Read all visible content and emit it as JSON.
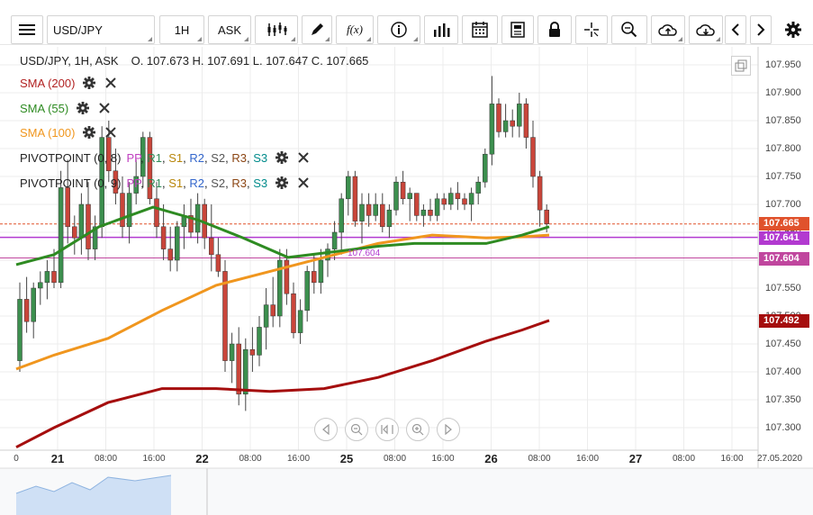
{
  "toolbar": {
    "symbol": "USD/JPY",
    "timeframe": "1H",
    "price_type": "ASK",
    "fx_label": "f(x)"
  },
  "chart": {
    "header": "USD/JPY, 1H, ASK",
    "ohlc_text": "O. 107.673 H. 107.691 L. 107.647 C. 107.665",
    "indicators": [
      {
        "label": "SMA (200)",
        "color": "#b22222"
      },
      {
        "label": "SMA (55)",
        "color": "#2e8b22"
      },
      {
        "label": "SMA (100)",
        "color": "#f0961e"
      }
    ],
    "pivots": [
      {
        "label": "PIVOTPOINT (0, 8)"
      },
      {
        "label": "PIVOTPOINT (0, 9)"
      }
    ],
    "pivot_levels": [
      {
        "label": "PP",
        "color": "#c040c0"
      },
      {
        "label": "R1",
        "color": "#2e8b57"
      },
      {
        "label": "S1",
        "color": "#b8860b"
      },
      {
        "label": "R2",
        "color": "#3366cc"
      },
      {
        "label": "S2",
        "color": "#555555"
      },
      {
        "label": "R3",
        "color": "#8b4513"
      },
      {
        "label": "S3",
        "color": "#008b8b"
      }
    ],
    "inline_level_label": "107.604",
    "price_axis": [
      "107.950",
      "107.900",
      "107.850",
      "107.800",
      "107.750",
      "107.700",
      "107.650",
      "107.600",
      "107.550",
      "107.500",
      "107.450",
      "107.400",
      "107.350",
      "107.300"
    ],
    "price_tags": [
      {
        "value": "107.665",
        "color": "#e0522c"
      },
      {
        "value": "107.641",
        "color": "#b23ad0"
      },
      {
        "value": "107.604",
        "color": "#c0469e"
      },
      {
        "value": "107.492",
        "color": "#a50e0e"
      }
    ],
    "time_axis": [
      {
        "label": "0",
        "day": false
      },
      {
        "label": "21",
        "day": true
      },
      {
        "label": "08:00",
        "day": false
      },
      {
        "label": "16:00",
        "day": false
      },
      {
        "label": "22",
        "day": true
      },
      {
        "label": "08:00",
        "day": false
      },
      {
        "label": "16:00",
        "day": false
      },
      {
        "label": "25",
        "day": true
      },
      {
        "label": "08:00",
        "day": false
      },
      {
        "label": "16:00",
        "day": false
      },
      {
        "label": "26",
        "day": true
      },
      {
        "label": "08:00",
        "day": false
      },
      {
        "label": "16:00",
        "day": false
      },
      {
        "label": "27",
        "day": true
      },
      {
        "label": "08:00",
        "day": false
      },
      {
        "label": "16:00",
        "day": false
      },
      {
        "label": "27.05.2020",
        "day": false
      }
    ],
    "colors": {
      "up": "#3c8f4e",
      "down": "#c9453a"
    }
  }
}
